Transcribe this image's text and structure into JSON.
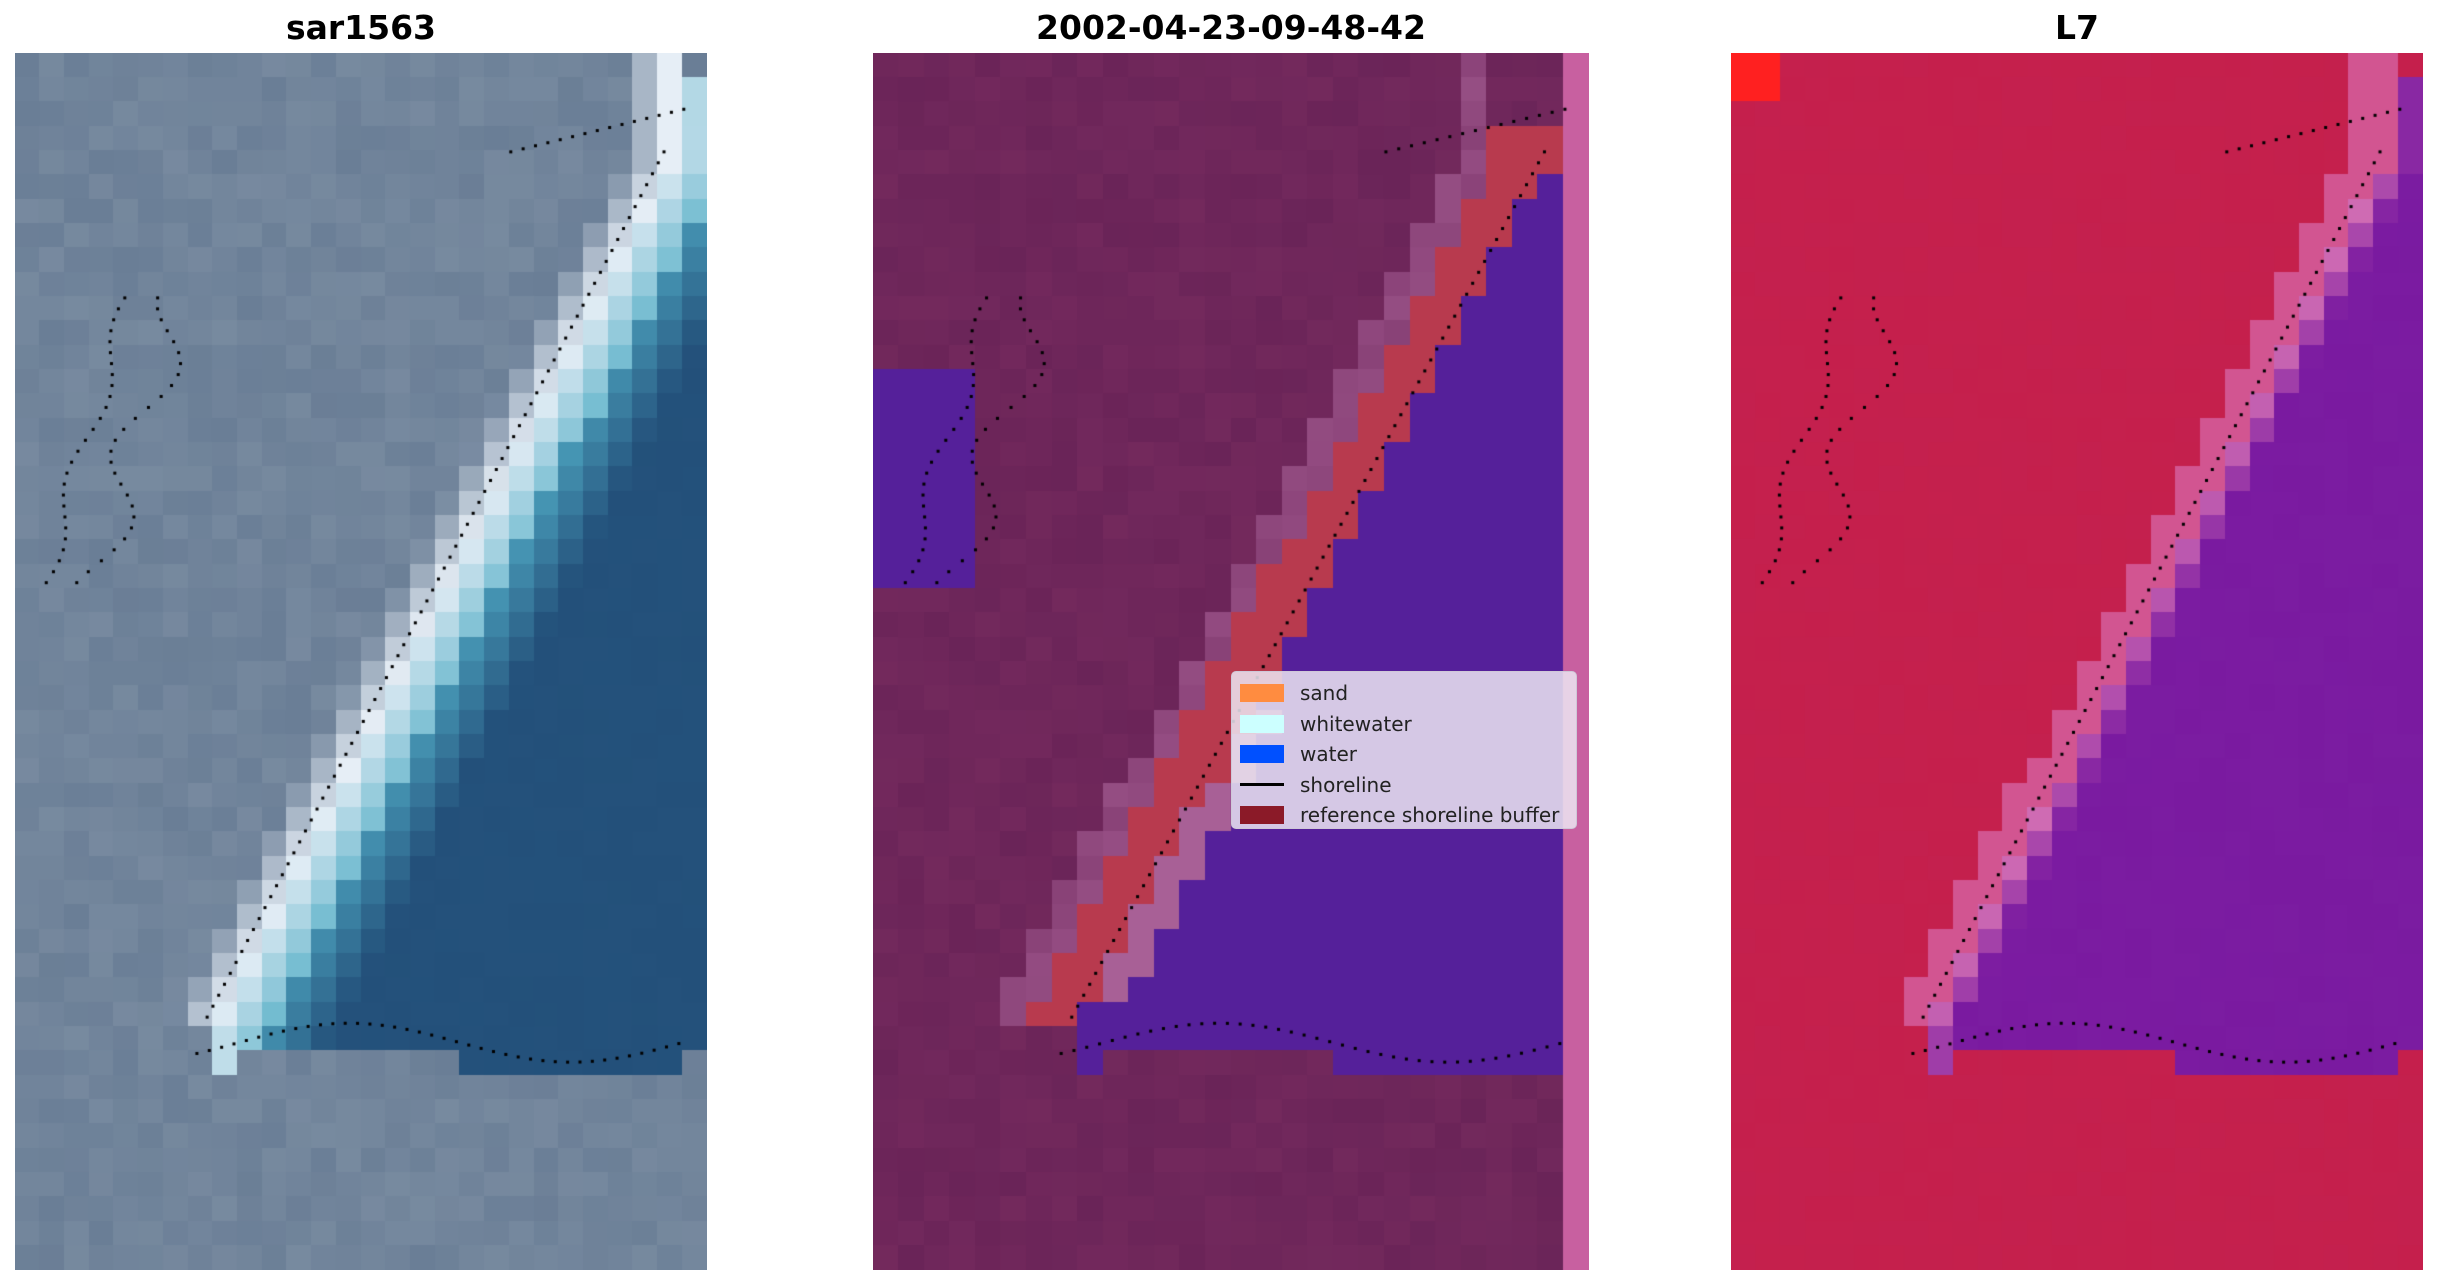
{
  "panels": [
    {
      "title": "sar1563"
    },
    {
      "title": "2002-04-23-09-48-42"
    },
    {
      "title": "L7"
    }
  ],
  "legend": {
    "items": [
      {
        "label": "sand",
        "color": "#ff8c40",
        "kind": "patch"
      },
      {
        "label": "whitewater",
        "color": "#ccffff",
        "kind": "patch"
      },
      {
        "label": "water",
        "color": "#0050ff",
        "kind": "patch"
      },
      {
        "label": "shoreline",
        "color": "#000000",
        "kind": "line"
      },
      {
        "label": "reference shoreline buffer",
        "color": "#8b1a28",
        "kind": "patch"
      }
    ]
  },
  "colors": {
    "rgb_land": "#6a7e96",
    "rgb_water": "#23507a",
    "rgb_whitewater": "#e6eef6",
    "classified_background": "#6a2458",
    "classified_water_overlay": "#55209a",
    "classified_buffer": "#b83a4e",
    "classified_pink": "#a86096",
    "ndwi_land": "#c4204e",
    "ndwi_water": "#7a1aa0",
    "shoreline_points": "#000000"
  }
}
